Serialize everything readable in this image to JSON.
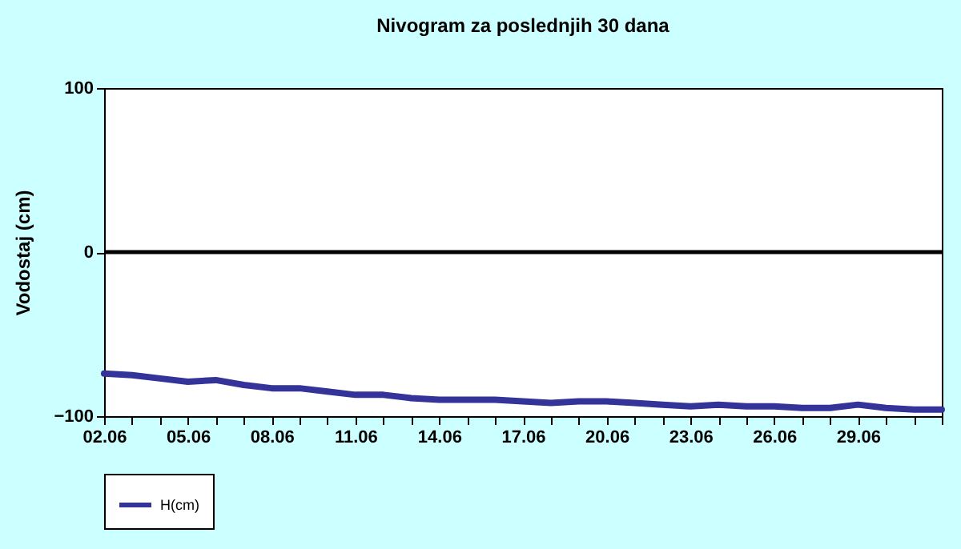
{
  "chart_data": {
    "type": "line",
    "title": "Nivogram za poslednjih 30 dana",
    "ylabel": "Vodostaj (cm)",
    "categories": [
      "02.06",
      null,
      null,
      "05.06",
      null,
      null,
      "08.06",
      null,
      null,
      "11.06",
      null,
      null,
      "14.06",
      null,
      null,
      "17.06",
      null,
      null,
      "20.06",
      null,
      null,
      "23.06",
      null,
      null,
      "26.06",
      null,
      null,
      "29.06",
      null,
      null,
      null
    ],
    "series": [
      {
        "name": "H(cm)",
        "color": "#333399",
        "values": [
          -74,
          -75,
          -77,
          -79,
          -78,
          -81,
          -83,
          -83,
          -85,
          -87,
          -87,
          -89,
          -90,
          -90,
          -90,
          -91,
          -92,
          -91,
          -91,
          -92,
          -93,
          -94,
          -93,
          -94,
          -94,
          -95,
          -95,
          -93,
          -95,
          -96,
          -96
        ]
      }
    ],
    "ylim": [
      -100,
      100
    ],
    "yticks": [
      -100,
      0,
      100
    ],
    "grid": false,
    "legend": "bottom",
    "ref_lines": [
      {
        "axis": "y",
        "value": 0,
        "color": "#000000"
      }
    ]
  }
}
